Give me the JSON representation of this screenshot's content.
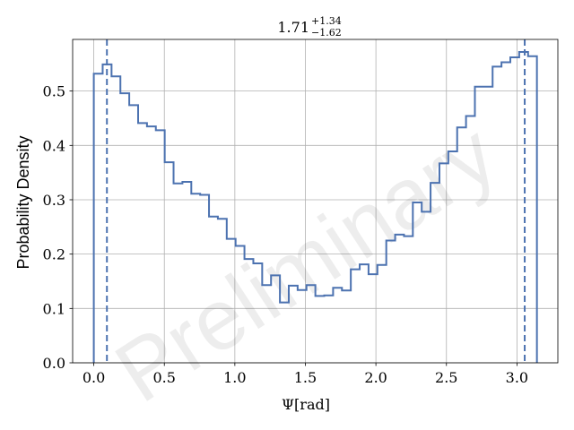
{
  "chart_data": {
    "type": "step",
    "title": {
      "value": "1.71",
      "upper": "+1.34",
      "lower": "−1.62"
    },
    "xlabel": "Ψ[rad]",
    "ylabel": "Probability Density",
    "watermark": "Preliminary",
    "xlim": [
      -0.15,
      3.29
    ],
    "ylim": [
      0.0,
      0.595
    ],
    "xticks": [
      0.0,
      0.5,
      1.0,
      1.5,
      2.0,
      2.5,
      3.0
    ],
    "xtick_labels": [
      "0.0",
      "0.5",
      "1.0",
      "1.5",
      "2.0",
      "2.5",
      "3.0"
    ],
    "yticks": [
      0.0,
      0.1,
      0.2,
      0.3,
      0.4,
      0.5
    ],
    "ytick_labels": [
      "0.0",
      "0.1",
      "0.2",
      "0.3",
      "0.4",
      "0.5"
    ],
    "grid": true,
    "line_color": "#4c72b0",
    "bin_edges": [
      0.0,
      0.0628,
      0.1257,
      0.1885,
      0.2513,
      0.3142,
      0.377,
      0.4398,
      0.5027,
      0.5655,
      0.6283,
      0.6912,
      0.754,
      0.8168,
      0.8796,
      0.9425,
      1.0053,
      1.0681,
      1.131,
      1.1938,
      1.2566,
      1.3195,
      1.3823,
      1.4451,
      1.508,
      1.5708,
      1.6336,
      1.6965,
      1.7593,
      1.8221,
      1.885,
      1.9478,
      2.0106,
      2.0735,
      2.1363,
      2.1991,
      2.2619,
      2.3248,
      2.3876,
      2.4504,
      2.5133,
      2.5761,
      2.6389,
      2.7018,
      2.7646,
      2.8274,
      2.8903,
      2.9531,
      3.0159,
      3.0788,
      3.1416
    ],
    "densities": [
      0.532,
      0.549,
      0.527,
      0.496,
      0.474,
      0.441,
      0.435,
      0.428,
      0.369,
      0.33,
      0.333,
      0.311,
      0.309,
      0.269,
      0.265,
      0.228,
      0.215,
      0.191,
      0.183,
      0.143,
      0.161,
      0.111,
      0.142,
      0.134,
      0.143,
      0.123,
      0.124,
      0.138,
      0.133,
      0.172,
      0.181,
      0.163,
      0.18,
      0.225,
      0.236,
      0.233,
      0.295,
      0.278,
      0.331,
      0.367,
      0.389,
      0.433,
      0.454,
      0.508,
      0.508,
      0.545,
      0.553,
      0.562,
      0.572,
      0.564
    ],
    "vlines": [
      0.093,
      3.055
    ]
  }
}
